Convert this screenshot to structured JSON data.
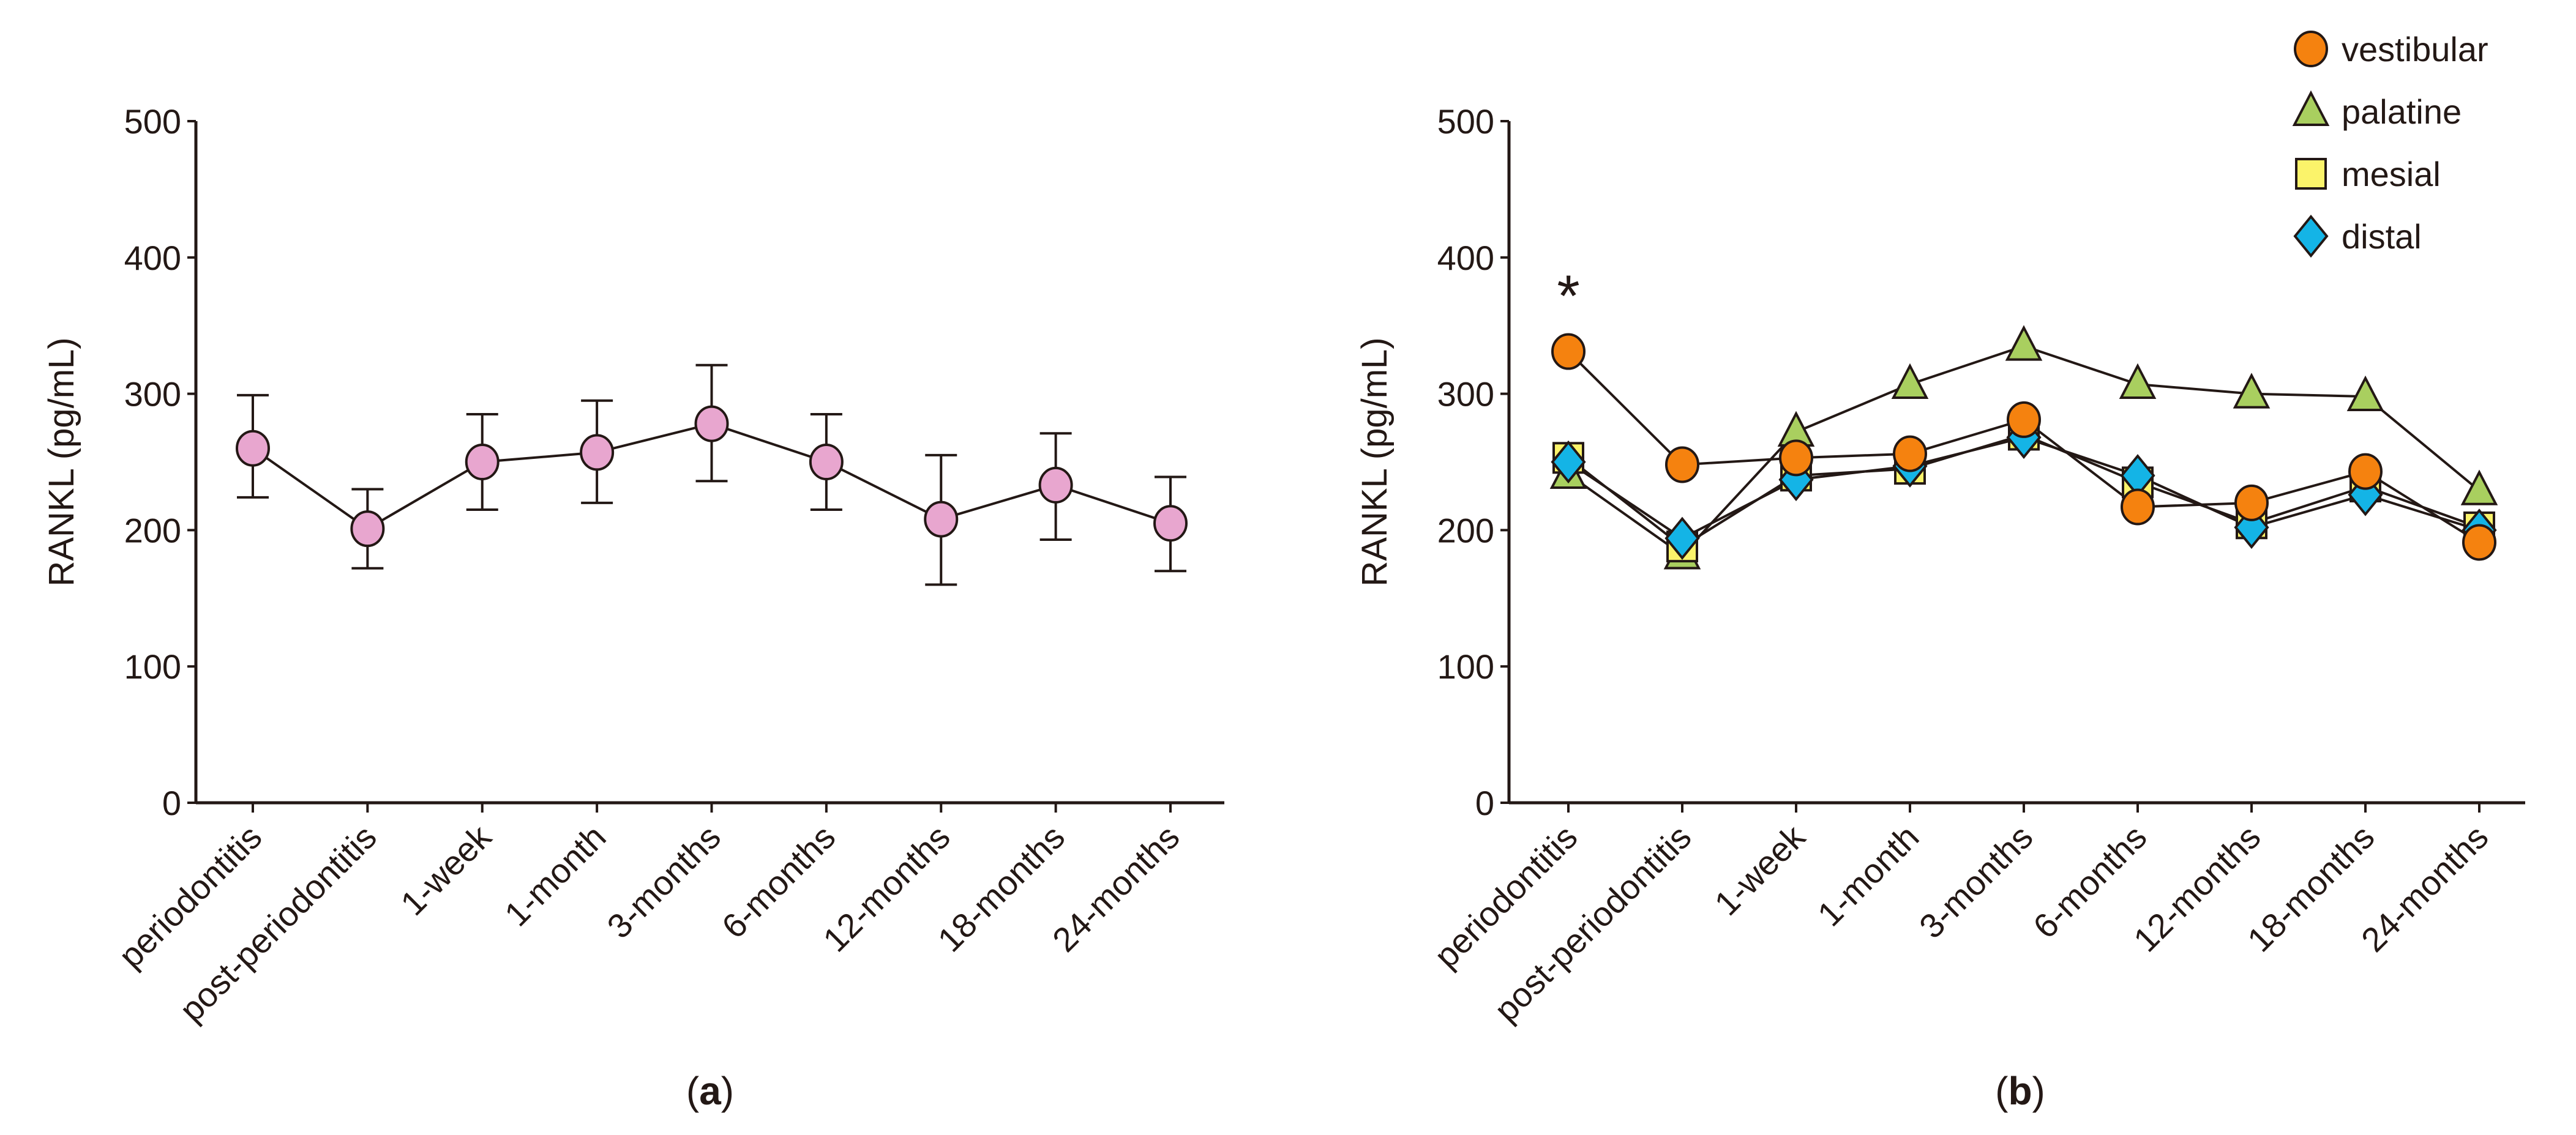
{
  "chart_data": [
    {
      "type": "line",
      "panel_label": "a",
      "ylabel": "RANKL (pg/mL)",
      "xlabel": "",
      "ylim": [
        0,
        500
      ],
      "yticks": [
        0,
        100,
        200,
        300,
        400,
        500
      ],
      "categories": [
        "periodontitis",
        "post-periodontitis",
        "1-week",
        "1-month",
        "3-months",
        "6-months",
        "12-months",
        "18-months",
        "24-months"
      ],
      "series": [
        {
          "name": "RANKL",
          "marker": "circle",
          "color": "#e8a6cf",
          "values": [
            260,
            201,
            250,
            257,
            278,
            250,
            208,
            233,
            205
          ],
          "err_low": [
            224,
            172,
            215,
            220,
            236,
            215,
            160,
            193,
            170
          ],
          "err_high": [
            299,
            230,
            285,
            295,
            321,
            285,
            255,
            271,
            239
          ]
        }
      ]
    },
    {
      "type": "line",
      "panel_label": "b",
      "ylabel": "RANKL (pg/mL)",
      "xlabel": "",
      "ylim": [
        0,
        500
      ],
      "yticks": [
        0,
        100,
        200,
        300,
        400,
        500
      ],
      "categories": [
        "periodontitis",
        "post-periodontitis",
        "1-week",
        "1-month",
        "3-months",
        "6-months",
        "12-months",
        "18-months",
        "24-months"
      ],
      "legend_position": "top-right",
      "annotations": [
        {
          "text": "*",
          "category": "periodontitis",
          "y": 375
        }
      ],
      "series": [
        {
          "name": "palatine",
          "marker": "triangle",
          "color": "#a9cf5f",
          "values": [
            241,
            182,
            272,
            307,
            335,
            307,
            300,
            298,
            229
          ]
        },
        {
          "name": "mesial",
          "marker": "square",
          "color": "#fbf36a",
          "values": [
            253,
            188,
            240,
            245,
            270,
            235,
            205,
            232,
            202
          ]
        },
        {
          "name": "distal",
          "marker": "diamond",
          "color": "#14b4e6",
          "values": [
            250,
            194,
            237,
            247,
            268,
            240,
            202,
            226,
            200
          ]
        },
        {
          "name": "vestibular",
          "marker": "circle",
          "color": "#f5820f",
          "values": [
            331,
            248,
            253,
            256,
            281,
            217,
            220,
            243,
            191
          ]
        }
      ],
      "legend_order": [
        "vestibular",
        "palatine",
        "mesial",
        "distal"
      ]
    }
  ]
}
